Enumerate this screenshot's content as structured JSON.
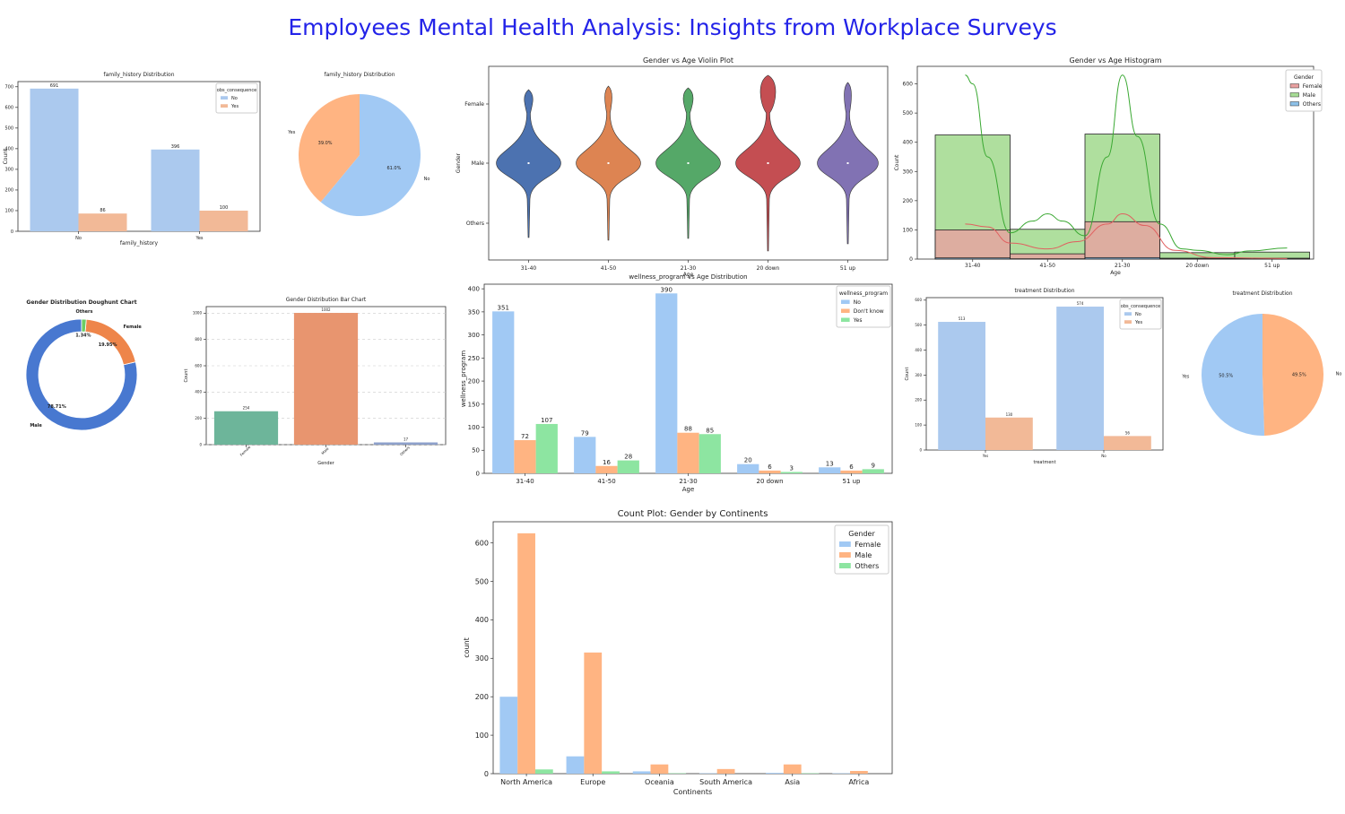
{
  "page": {
    "title": "Employees Mental Health Analysis: Insights from Workplace Surveys"
  },
  "colors": {
    "blue": "#a1c9f4",
    "orange": "#ffb482",
    "green": "#8de5a1",
    "barBlue": "#abc9ee",
    "barOrange": "#f2b997",
    "violin": [
      "#4c72b0",
      "#dd8452",
      "#55a868",
      "#c44e52",
      "#8172b3"
    ],
    "donut": [
      "#4878d0",
      "#ee854a",
      "#6acc64"
    ],
    "genderBar": [
      "#6db59a",
      "#e8956f",
      "#8da0cb"
    ],
    "histFemale": "#e8a0a0",
    "histMale": "#a6dc94",
    "histOthers": "#8cc0e8",
    "titleBlue": "#00008b"
  },
  "chart_data": [
    {
      "id": "fh_bar",
      "type": "bar",
      "title": "family_history Distribution",
      "xlabel": "family_history",
      "ylabel": "Count",
      "categories": [
        "No",
        "Yes"
      ],
      "yticks": [
        0,
        100,
        200,
        300,
        400,
        500,
        600,
        700
      ],
      "ylim": [
        0,
        725
      ],
      "legend": {
        "title": "obs_consequence",
        "entries": [
          "No",
          "Yes"
        ],
        "position": "top-right"
      },
      "series": [
        {
          "name": "No",
          "values": [
            691,
            396
          ]
        },
        {
          "name": "Yes",
          "values": [
            86,
            100
          ]
        }
      ]
    },
    {
      "id": "fh_pie",
      "type": "pie",
      "title": "family_history Distribution",
      "labels": [
        "No",
        "Yes"
      ],
      "values": [
        61.0,
        39.0
      ],
      "pct_labels": [
        "61.0%",
        "39.0%"
      ]
    },
    {
      "id": "violin",
      "type": "violin",
      "title": "Gender vs Age Violin Plot",
      "xlabel": "Age",
      "ylabel": "Gender",
      "categories": [
        "31-40",
        "41-50",
        "21-30",
        "20 down",
        "51 up"
      ],
      "y_categories": [
        "Female",
        "Male",
        "Others"
      ]
    },
    {
      "id": "hist",
      "type": "bar",
      "title": "Gender vs Age Histogram",
      "xlabel": "Age",
      "ylabel": "Count",
      "categories": [
        "31-40",
        "41-50",
        "21-30",
        "20 down",
        "51 up"
      ],
      "yticks": [
        0,
        100,
        200,
        300,
        400,
        500,
        600
      ],
      "ylim": [
        0,
        660
      ],
      "legend": {
        "title": "Gender",
        "entries": [
          "Female",
          "Male",
          "Others"
        ],
        "position": "top-right"
      },
      "series": [
        {
          "name": "Female",
          "values": [
            100,
            18,
            128,
            3,
            3
          ]
        },
        {
          "name": "Male",
          "values": [
            425,
            102,
            428,
            22,
            24
          ]
        },
        {
          "name": "Others",
          "values": [
            4,
            1,
            5,
            1,
            1
          ]
        }
      ],
      "kde": {
        "Male": [
          [
            -0.1,
            630
          ],
          [
            0.0,
            600
          ],
          [
            0.2,
            350
          ],
          [
            0.5,
            90
          ],
          [
            0.8,
            130
          ],
          [
            1.0,
            155
          ],
          [
            1.2,
            130
          ],
          [
            1.5,
            80
          ],
          [
            1.8,
            350
          ],
          [
            2.0,
            630
          ],
          [
            2.2,
            420
          ],
          [
            2.5,
            120
          ],
          [
            2.8,
            35
          ],
          [
            3.0,
            30
          ],
          [
            3.4,
            15
          ],
          [
            3.7,
            28
          ],
          [
            4.2,
            38
          ]
        ],
        "Female": [
          [
            -0.1,
            120
          ],
          [
            0.2,
            110
          ],
          [
            0.5,
            55
          ],
          [
            1.0,
            35
          ],
          [
            1.4,
            60
          ],
          [
            1.8,
            120
          ],
          [
            2.0,
            155
          ],
          [
            2.3,
            115
          ],
          [
            2.7,
            30
          ],
          [
            3.2,
            5
          ],
          [
            4.2,
            2
          ]
        ]
      }
    },
    {
      "id": "donut",
      "type": "pie",
      "title": "Gender Distribution Doughunt Chart",
      "labels": [
        "Male",
        "Female",
        "Others"
      ],
      "values": [
        78.71,
        19.95,
        1.34
      ],
      "pct_labels": [
        "78.71%",
        "19.95%",
        "1.34%"
      ]
    },
    {
      "id": "gender_bar",
      "type": "bar",
      "title": "Gender Distribution Bar Chart",
      "xlabel": "Gender",
      "ylabel": "Count",
      "categories": [
        "Female",
        "Male",
        "Others"
      ],
      "values": [
        254,
        1002,
        17
      ],
      "yticks": [
        0,
        200,
        400,
        600,
        800,
        1000
      ],
      "ylim": [
        0,
        1050
      ]
    },
    {
      "id": "wellness",
      "type": "bar",
      "title": "wellness_program vs Age Distribution",
      "xlabel": "Age",
      "ylabel": "wellness_program",
      "categories": [
        "31-40",
        "41-50",
        "21-30",
        "20 down",
        "51 up"
      ],
      "yticks": [
        0,
        50,
        100,
        150,
        200,
        250,
        300,
        350,
        400
      ],
      "ylim": [
        0,
        410
      ],
      "legend": {
        "title": "wellness_program",
        "entries": [
          "No",
          "Don't know",
          "Yes"
        ],
        "position": "top-right"
      },
      "series": [
        {
          "name": "No",
          "values": [
            351,
            79,
            390,
            20,
            13
          ]
        },
        {
          "name": "Don't know",
          "values": [
            72,
            16,
            88,
            6,
            6
          ]
        },
        {
          "name": "Yes",
          "values": [
            107,
            28,
            85,
            3,
            9
          ]
        }
      ]
    },
    {
      "id": "tr_bar",
      "type": "bar",
      "title": "treatment Distribution",
      "xlabel": "treatment",
      "ylabel": "Count",
      "categories": [
        "Yes",
        "No"
      ],
      "yticks": [
        0,
        100,
        200,
        300,
        400,
        500,
        600
      ],
      "ylim": [
        0,
        610
      ],
      "legend": {
        "title": "obs_consequence",
        "entries": [
          "No",
          "Yes"
        ],
        "position": "top-right"
      },
      "series": [
        {
          "name": "No",
          "values": [
            513,
            574
          ]
        },
        {
          "name": "Yes",
          "values": [
            130,
            56
          ]
        }
      ]
    },
    {
      "id": "tr_pie",
      "type": "pie",
      "title": "treatment Distribution",
      "labels": [
        "Yes",
        "No"
      ],
      "values": [
        50.5,
        49.5
      ],
      "pct_labels": [
        "50.5%",
        "49.5%"
      ]
    },
    {
      "id": "continents",
      "type": "bar",
      "title": "Count Plot: Gender by Continents",
      "xlabel": "Continents",
      "ylabel": "count",
      "categories": [
        "North America",
        "Europe",
        "Oceania",
        "South America",
        "Asia",
        "Africa"
      ],
      "yticks": [
        0,
        100,
        200,
        300,
        400,
        500,
        600
      ],
      "ylim": [
        0,
        655
      ],
      "legend": {
        "title": "Gender",
        "entries": [
          "Female",
          "Male",
          "Others"
        ],
        "position": "top-right"
      },
      "series": [
        {
          "name": "Female",
          "values": [
            200,
            45,
            6,
            1,
            2,
            1
          ]
        },
        {
          "name": "Male",
          "values": [
            625,
            315,
            24,
            12,
            24,
            7
          ]
        },
        {
          "name": "Others",
          "values": [
            11,
            6,
            1,
            0,
            1,
            0
          ]
        }
      ]
    }
  ]
}
